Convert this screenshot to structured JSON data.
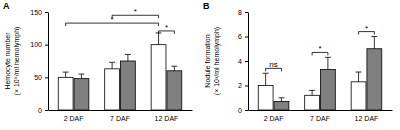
{
  "chart_data": [
    {
      "type": "bar",
      "title": "A",
      "ylabel": [
        "Hemocyte number",
        "(× 10⁵/ml hemolymph)"
      ],
      "categories": [
        "2 DAF",
        "7 DAF",
        "12 DAF"
      ],
      "series": [
        {
          "color": "#ffffff",
          "values": [
            50,
            63,
            100
          ],
          "errors": [
            8,
            10,
            18
          ]
        },
        {
          "color": "#808080",
          "values": [
            48,
            75,
            60
          ],
          "errors": [
            7,
            10,
            7
          ]
        }
      ],
      "ylim": [
        0,
        150
      ],
      "yticks": [
        0,
        50,
        100,
        150
      ],
      "annotations": [
        {
          "text": "*",
          "from": [
            1,
            0
          ],
          "to": [
            2,
            0
          ],
          "y": 145
        },
        {
          "text": "*",
          "from": [
            0,
            0
          ],
          "to": [
            2,
            0
          ],
          "y": 133
        },
        {
          "text": "*",
          "from": [
            2,
            0
          ],
          "to": [
            2,
            1
          ],
          "y": 121
        }
      ]
    },
    {
      "type": "bar",
      "title": "B",
      "ylabel": [
        "Nodule formation",
        "(× 10³/ml hemolymph)"
      ],
      "categories": [
        "2 DAF",
        "7 DAF",
        "12 DAF"
      ],
      "series": [
        {
          "color": "#ffffff",
          "values": [
            2.0,
            1.2,
            2.3
          ],
          "errors": [
            1.0,
            0.4,
            0.8
          ]
        },
        {
          "color": "#808080",
          "values": [
            0.7,
            3.3,
            5.0
          ],
          "errors": [
            0.3,
            1.0,
            1.0
          ]
        }
      ],
      "ylim": [
        0,
        8
      ],
      "yticks": [
        0,
        2,
        4,
        6,
        8
      ],
      "annotations": [
        {
          "text": "ns",
          "from": [
            0,
            0
          ],
          "to": [
            0,
            1
          ],
          "y": 3.4
        },
        {
          "text": "*",
          "from": [
            1,
            0
          ],
          "to": [
            1,
            1
          ],
          "y": 4.7
        },
        {
          "text": "*",
          "from": [
            2,
            0
          ],
          "to": [
            2,
            1
          ],
          "y": 6.4
        }
      ]
    }
  ]
}
